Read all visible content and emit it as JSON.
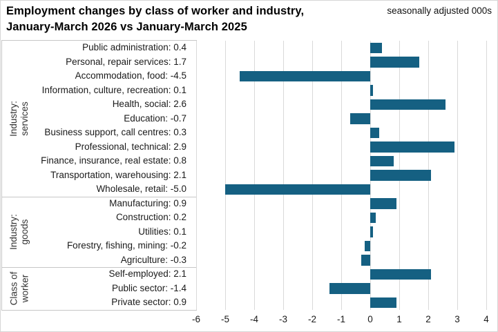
{
  "header": {
    "title_line1": "Employment changes by class of worker and industry,",
    "title_line2": "January-March 2026 vs January-March 2025",
    "note": "seasonally adjusted 000s"
  },
  "chart_data": {
    "type": "bar",
    "orientation": "horizontal",
    "title": "Employment changes by class of worker and industry, January-March 2026 vs January-March 2025",
    "subtitle": "seasonally adjusted 000s",
    "xlabel": "",
    "ylabel": "",
    "xlim": [
      -6,
      4
    ],
    "x_ticks": [
      -6,
      -5,
      -4,
      -3,
      -2,
      -1,
      0,
      1,
      2,
      3,
      4
    ],
    "grid": true,
    "bar_color": "#156082",
    "value_label_format": "one_decimal",
    "groups": [
      {
        "label": "Industry: services",
        "items": [
          {
            "category": "Public administration",
            "value": 0.4
          },
          {
            "category": "Personal, repair services",
            "value": 1.7
          },
          {
            "category": "Accommodation, food",
            "value": -4.5
          },
          {
            "category": "Information, culture, recreation",
            "value": 0.1
          },
          {
            "category": "Health, social",
            "value": 2.6
          },
          {
            "category": "Education",
            "value": -0.7
          },
          {
            "category": "Business support, call centres",
            "value": 0.3
          },
          {
            "category": "Professional, technical",
            "value": 2.9
          },
          {
            "category": "Finance, insurance, real estate",
            "value": 0.8
          },
          {
            "category": "Transportation, warehousing",
            "value": 2.1
          },
          {
            "category": "Wholesale, retail",
            "value": -5.0
          }
        ]
      },
      {
        "label": "Industry: goods",
        "items": [
          {
            "category": "Manufacturing",
            "value": 0.9
          },
          {
            "category": "Construction",
            "value": 0.2
          },
          {
            "category": "Utilities",
            "value": 0.1
          },
          {
            "category": "Forestry, fishing, mining",
            "value": -0.2
          },
          {
            "category": "Agriculture",
            "value": -0.3
          }
        ]
      },
      {
        "label": "Class of\nworker",
        "items": [
          {
            "category": "Self-employed",
            "value": 2.1
          },
          {
            "category": "Public sector",
            "value": -1.4
          },
          {
            "category": "Private sector",
            "value": 0.9
          }
        ]
      }
    ]
  }
}
